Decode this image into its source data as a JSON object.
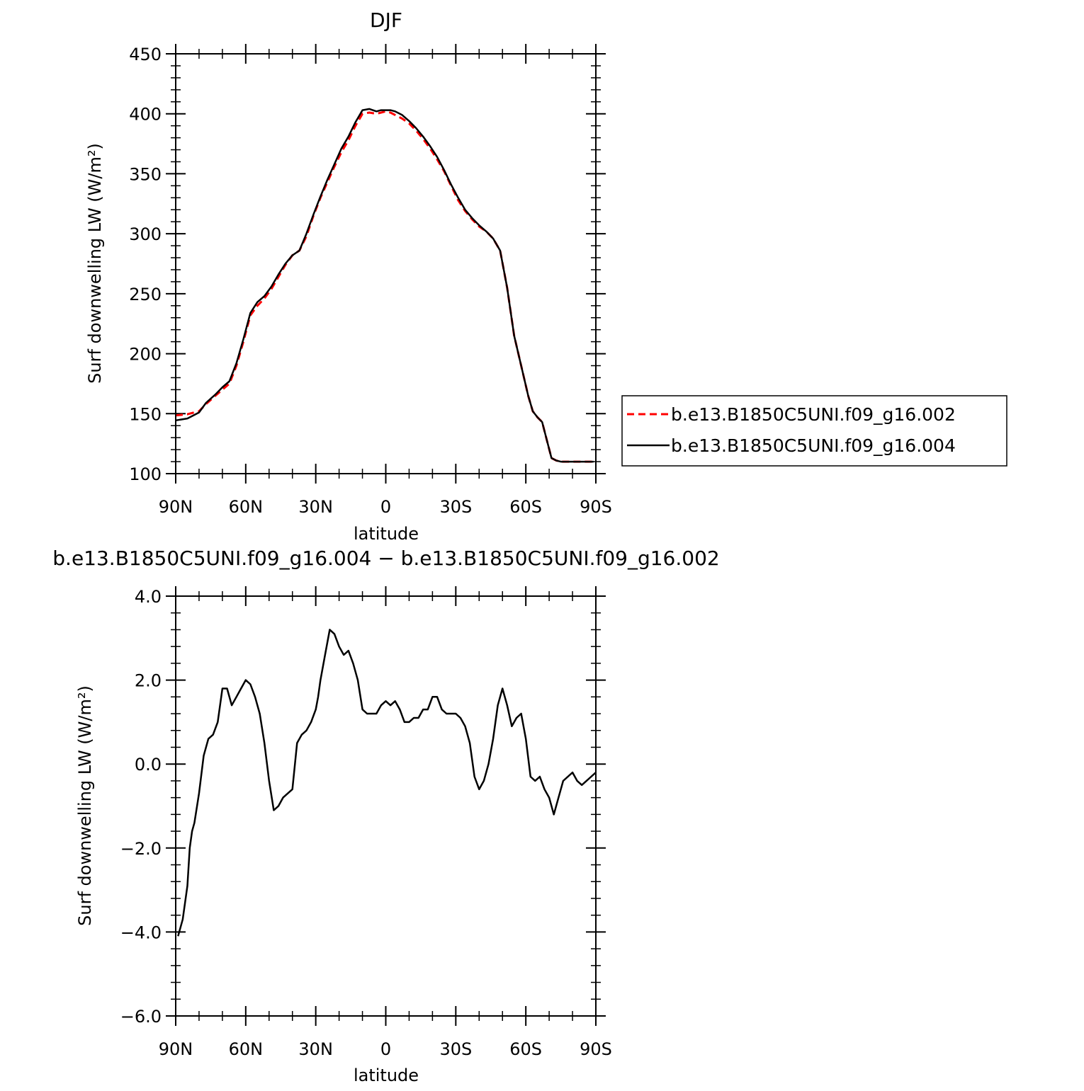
{
  "chart_data": [
    {
      "type": "line",
      "title": "DJF",
      "xlabel": "latitude",
      "ylabel": "Surf downwelling LW (W/m²)",
      "xlim": [
        90,
        -90
      ],
      "ylim": [
        100,
        450
      ],
      "yticks": [
        100,
        150,
        200,
        250,
        300,
        350,
        400,
        450
      ],
      "yticklabels": [
        "100",
        "150",
        "200",
        "250",
        "300",
        "350",
        "400",
        "450"
      ],
      "xticks": [
        90,
        60,
        30,
        0,
        -30,
        -60,
        -90
      ],
      "xticklabels": [
        "90N",
        "60N",
        "30N",
        "0",
        "30S",
        "60S",
        "90S"
      ],
      "legend_position": "right",
      "grid": false,
      "x": [
        90,
        85,
        80,
        77,
        73,
        70,
        67,
        64,
        61,
        58,
        55,
        52,
        49,
        46,
        43,
        40,
        37,
        34,
        31,
        28,
        25,
        22,
        19,
        16,
        13,
        10,
        7,
        4,
        2,
        0,
        -2,
        -4,
        -7,
        -10,
        -13,
        -16,
        -19,
        -22,
        -25,
        -28,
        -31,
        -34,
        -37,
        -40,
        -43,
        -46,
        -49,
        -52,
        -55,
        -58,
        -61,
        -63,
        -65,
        -67,
        -69,
        -71,
        -73,
        -75,
        -77,
        -79,
        -81,
        -83,
        -85,
        -87,
        -89
      ],
      "series": [
        {
          "name": "b.e13.B1850C5UNI.f09_g16.002",
          "color": "#ff0000",
          "dash": true,
          "values": [
            148.5,
            149.5,
            152,
            158,
            165,
            170,
            175,
            190,
            210,
            232,
            240,
            246,
            254,
            264,
            274,
            282,
            286,
            298,
            315,
            330,
            343,
            356,
            368,
            378,
            390,
            400,
            401,
            400,
            401,
            402,
            401,
            399,
            396,
            392,
            386,
            379,
            371,
            362,
            352,
            340,
            328,
            319,
            312,
            306,
            302,
            296,
            286,
            255,
            215,
            190,
            165,
            152,
            147,
            143,
            128,
            113,
            111,
            110,
            110,
            110,
            110,
            110,
            110,
            110,
            110
          ]
        },
        {
          "name": "b.e13.B1850C5UNI.f09_g16.004",
          "color": "#000000",
          "dash": false,
          "values": [
            144.4,
            146,
            151,
            159,
            166,
            172,
            177,
            192,
            212,
            234,
            243,
            248,
            256,
            266,
            275,
            282,
            286,
            300,
            316,
            331,
            345,
            358,
            371,
            381,
            393,
            403,
            404,
            402,
            403,
            403,
            403,
            402,
            399,
            394,
            388,
            381,
            373,
            364,
            353,
            341,
            330,
            320,
            313,
            307,
            302,
            296,
            286,
            255,
            215,
            190,
            165,
            152,
            147,
            143,
            128,
            113,
            111,
            110,
            110,
            110,
            110,
            110,
            110,
            110,
            110
          ]
        }
      ]
    },
    {
      "type": "line",
      "title": "b.e13.B1850C5UNI.f09_g16.004 − b.e13.B1850C5UNI.f09_g16.002",
      "xlabel": "latitude",
      "ylabel": "Surf downwelling LW (W/m²)",
      "xlim": [
        90,
        -90
      ],
      "ylim": [
        -6.0,
        4.0
      ],
      "yticks": [
        -6,
        -4,
        -2,
        0,
        2,
        4
      ],
      "yticklabels": [
        "−6.0",
        "−4.0",
        "−2.0",
        "0.0",
        "2.0",
        "4.0"
      ],
      "xticks": [
        90,
        60,
        30,
        0,
        -30,
        -60,
        -90
      ],
      "xticklabels": [
        "90N",
        "60N",
        "30N",
        "0",
        "30S",
        "60S",
        "90S"
      ],
      "grid": false,
      "x": [
        89,
        87,
        85,
        84,
        83,
        82,
        80,
        78,
        76,
        74,
        72,
        70,
        68,
        66,
        64,
        62,
        60,
        58,
        56,
        54,
        52,
        50,
        48,
        46,
        44,
        42,
        40,
        38,
        36,
        34,
        32,
        30,
        29,
        28,
        26,
        24,
        22,
        20,
        18,
        16,
        14,
        12,
        10,
        8,
        6,
        4,
        2,
        0,
        -2,
        -4,
        -6,
        -8,
        -10,
        -12,
        -14,
        -16,
        -18,
        -20,
        -22,
        -24,
        -26,
        -28,
        -30,
        -32,
        -34,
        -36,
        -38,
        -40,
        -42,
        -44,
        -46,
        -48,
        -50,
        -52,
        -54,
        -56,
        -58,
        -60,
        -62,
        -64,
        -66,
        -68,
        -70,
        -72,
        -74,
        -76,
        -78,
        -80,
        -82,
        -84,
        -86,
        -88,
        -90
      ],
      "series": [
        {
          "name": "b.e13.B1850C5UNI.f09_g16.004 − b.e13.B1850C5UNI.f09_g16.002",
          "color": "#000000",
          "dash": false,
          "values": [
            -4.1,
            -3.7,
            -2.9,
            -2.0,
            -1.6,
            -1.4,
            -0.7,
            0.2,
            0.6,
            0.7,
            1.0,
            1.8,
            1.8,
            1.4,
            1.6,
            1.8,
            2.0,
            1.9,
            1.6,
            1.2,
            0.5,
            -0.4,
            -1.1,
            -1.0,
            -0.8,
            -0.7,
            -0.6,
            0.5,
            0.7,
            0.8,
            1.0,
            1.3,
            1.6,
            2.0,
            2.6,
            3.2,
            3.1,
            2.8,
            2.6,
            2.7,
            2.4,
            2.0,
            1.3,
            1.2,
            1.2,
            1.2,
            1.4,
            1.5,
            1.4,
            1.5,
            1.3,
            1.0,
            1.0,
            1.1,
            1.1,
            1.3,
            1.3,
            1.6,
            1.6,
            1.3,
            1.2,
            1.2,
            1.2,
            1.1,
            0.9,
            0.5,
            -0.3,
            -0.6,
            -0.4,
            0.0,
            0.6,
            1.4,
            1.8,
            1.4,
            0.9,
            1.1,
            1.2,
            0.6,
            -0.3,
            -0.4,
            -0.3,
            -0.6,
            -0.8,
            -1.2,
            -0.8,
            -0.4,
            -0.3,
            -0.2,
            -0.4,
            -0.5,
            -0.4,
            -0.3,
            -0.2
          ]
        }
      ]
    }
  ]
}
